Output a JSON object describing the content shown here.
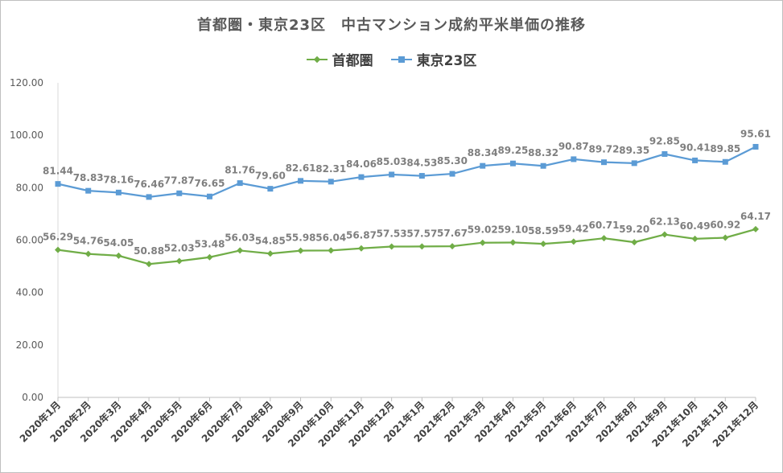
{
  "chart_data": {
    "type": "line",
    "title": "首都圏・東京23区　中古マンション成約平米単価の推移",
    "xlabel": "",
    "ylabel": "",
    "ylim": [
      0,
      120
    ],
    "yticks": [
      "0.00",
      "20.00",
      "40.00",
      "60.00",
      "80.00",
      "100.00",
      "120.00"
    ],
    "grid": false,
    "legend_position": "top-center",
    "categories": [
      "2020年1月",
      "2020年2月",
      "2020年3月",
      "2020年4月",
      "2020年5月",
      "2020年6月",
      "2020年7月",
      "2020年8月",
      "2020年9月",
      "2020年10月",
      "2020年11月",
      "2020年12月",
      "2021年1月",
      "2021年2月",
      "2021年3月",
      "2021年4月",
      "2021年5月",
      "2021年6月",
      "2021年7月",
      "2021年8月",
      "2021年9月",
      "2021年10月",
      "2021年11月",
      "2021年12月"
    ],
    "series": [
      {
        "name": "首都圏",
        "color": "#70ad47",
        "marker": "diamond",
        "values": [
          56.29,
          54.76,
          54.05,
          50.88,
          52.03,
          53.48,
          56.03,
          54.85,
          55.98,
          56.04,
          56.87,
          57.53,
          57.57,
          57.67,
          59.02,
          59.1,
          58.59,
          59.42,
          60.71,
          59.2,
          62.13,
          60.49,
          60.92,
          64.17
        ],
        "labels": [
          "56.29",
          "54.76",
          "54.05",
          "50.88",
          "52.03",
          "53.48",
          "56.03",
          "54.85",
          "55.98",
          "56.04",
          "56.87",
          "57.53",
          "57.57",
          "57.67",
          "59.02",
          "59.10",
          "58.59",
          "59.42",
          "60.71",
          "59.20",
          "62.13",
          "60.49",
          "60.92",
          "64.17"
        ]
      },
      {
        "name": "東京23区",
        "color": "#5b9bd5",
        "marker": "square",
        "values": [
          81.44,
          78.83,
          78.16,
          76.46,
          77.87,
          76.65,
          81.76,
          79.6,
          82.61,
          82.31,
          84.06,
          85.03,
          84.53,
          85.3,
          88.34,
          89.25,
          88.32,
          90.87,
          89.72,
          89.35,
          92.85,
          90.41,
          89.85,
          95.61
        ],
        "labels": [
          "81.44",
          "78.83",
          "78.16",
          "76.46",
          "77.87",
          "76.65",
          "81.76",
          "79.60",
          "82.61",
          "82.31",
          "84.06",
          "85.03",
          "84.53",
          "85.30",
          "88.34",
          "89.25",
          "88.32",
          "90.87",
          "89.72",
          "89.35",
          "92.85",
          "90.41",
          "89.85",
          "95.61"
        ]
      }
    ]
  }
}
